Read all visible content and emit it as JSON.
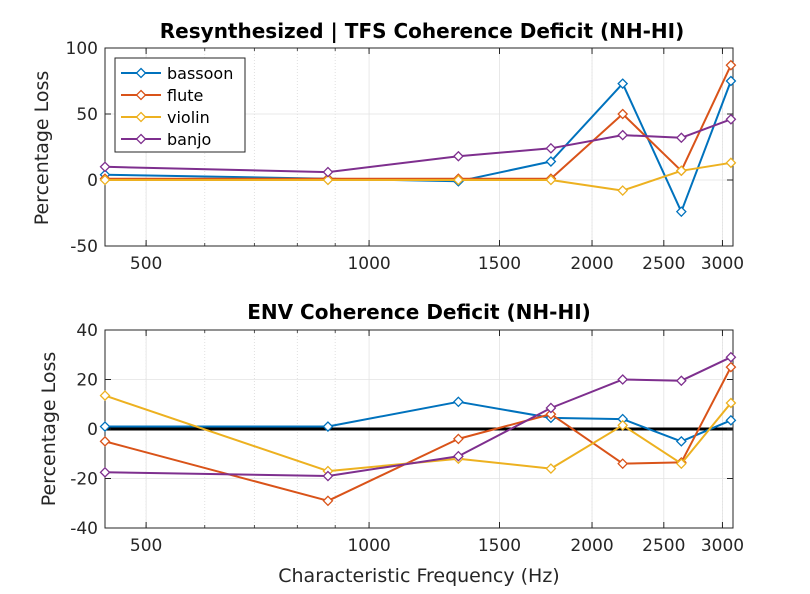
{
  "chart_data": [
    {
      "type": "line",
      "title": "Resynthesized | TFS Coherence Deficit (NH-HI)",
      "xlabel": "",
      "ylabel": "Percentage Loss",
      "xscale": "log",
      "xlim": [
        440,
        3100
      ],
      "ylim": [
        -50,
        100
      ],
      "xticks": [
        500,
        1000,
        1500,
        2000,
        2500,
        3000
      ],
      "yticks": [
        -50,
        0,
        50,
        100
      ],
      "grid": true,
      "legend": "top-left",
      "x": [
        440,
        880,
        1320,
        1760,
        2200,
        2640,
        3080
      ],
      "series": [
        {
          "name": "bassoon",
          "color": "#0072BD",
          "values": [
            4,
            1,
            -1,
            14,
            73,
            -24,
            75
          ]
        },
        {
          "name": "flute",
          "color": "#D95319",
          "values": [
            1,
            1,
            1,
            1,
            50,
            7,
            87
          ]
        },
        {
          "name": "violin",
          "color": "#EDB120",
          "values": [
            0,
            0,
            0,
            0,
            -8,
            7,
            13
          ]
        },
        {
          "name": "banjo",
          "color": "#7E2F8E",
          "values": [
            10,
            6,
            18,
            24,
            34,
            32,
            46
          ]
        }
      ]
    },
    {
      "type": "line",
      "title": "ENV Coherence Deficit (NH-HI)",
      "xlabel": "Characteristic Frequency (Hz)",
      "ylabel": "Percentage Loss",
      "xscale": "log",
      "xlim": [
        440,
        3100
      ],
      "ylim": [
        -40,
        40
      ],
      "xticks": [
        500,
        1000,
        1500,
        2000,
        2500,
        3000
      ],
      "yticks": [
        -40,
        -20,
        0,
        20,
        40
      ],
      "grid": true,
      "reference_line_y": 0,
      "x": [
        440,
        880,
        1320,
        1760,
        2200,
        2640,
        3080
      ],
      "series": [
        {
          "name": "bassoon",
          "color": "#0072BD",
          "values": [
            1,
            1,
            11,
            4.5,
            4,
            -5,
            3.5
          ]
        },
        {
          "name": "flute",
          "color": "#D95319",
          "values": [
            -5,
            -29,
            -4,
            6,
            -14,
            -13.5,
            25
          ]
        },
        {
          "name": "violin",
          "color": "#EDB120",
          "values": [
            13.5,
            -17,
            -12,
            -16,
            1.5,
            -14,
            10.5
          ]
        },
        {
          "name": "banjo",
          "color": "#7E2F8E",
          "values": [
            -17.5,
            -19,
            -11,
            8.5,
            20,
            19.5,
            29
          ]
        }
      ]
    }
  ]
}
